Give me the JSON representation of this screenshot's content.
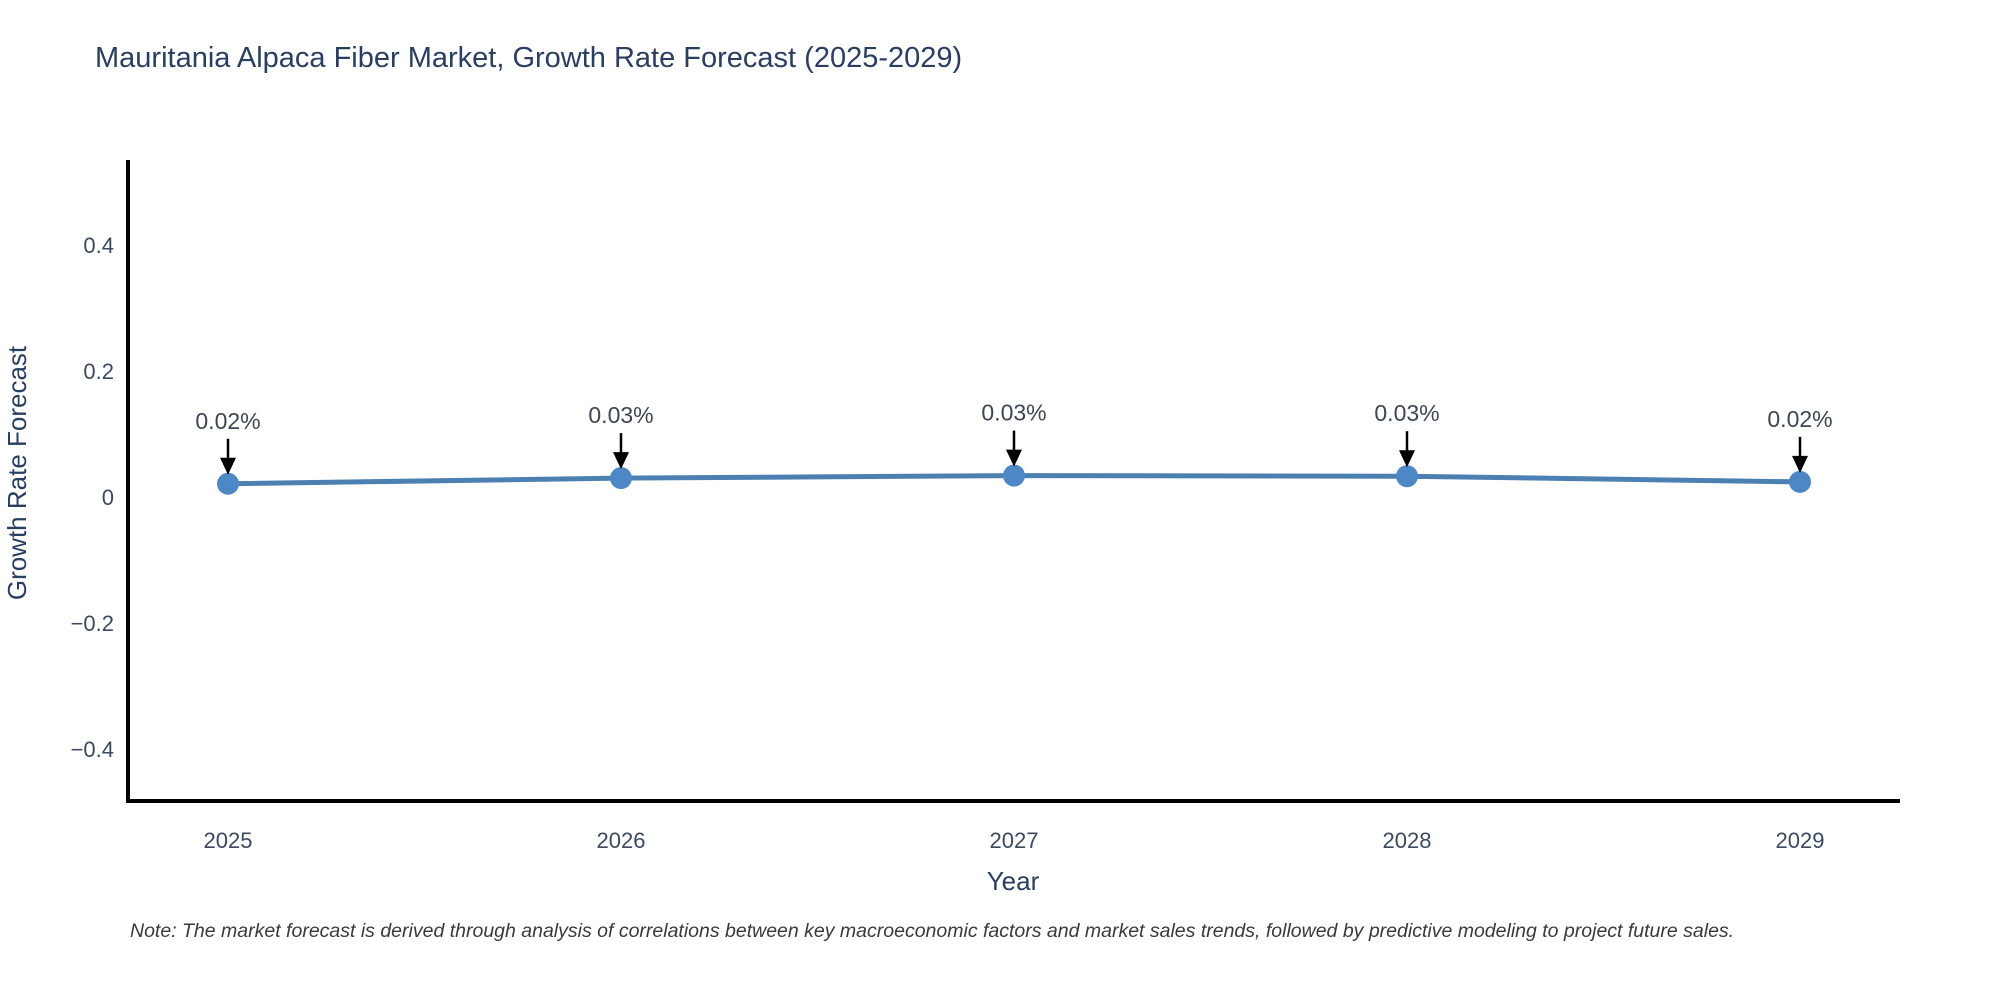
{
  "page": {
    "background_color": "#ffffff"
  },
  "chart_data": {
    "type": "line",
    "title": "Mauritania Alpaca Fiber Market, Growth Rate Forecast (2025-2029)",
    "xlabel": "Year",
    "ylabel": "Growth Rate Forecast",
    "note": "Note: The market forecast is derived through analysis of correlations between key macroeconomic factors and market sales trends, followed by predictive modeling to project future sales.",
    "x": [
      2025,
      2026,
      2027,
      2028,
      2029
    ],
    "values": [
      0.021,
      0.03,
      0.034,
      0.033,
      0.024
    ],
    "point_labels": [
      "0.02%",
      "0.03%",
      "0.03%",
      "0.03%",
      "0.02%"
    ],
    "yticks": [
      {
        "v": -0.4,
        "label": "−0.4"
      },
      {
        "v": -0.2,
        "label": "−0.2"
      },
      {
        "v": 0,
        "label": "0"
      },
      {
        "v": 0.2,
        "label": "0.2"
      },
      {
        "v": 0.4,
        "label": "0.4"
      }
    ],
    "ylim": [
      -0.48,
      0.54
    ],
    "grid": false,
    "legend": "none",
    "colors": {
      "line": "#4c80b2",
      "marker": "#4d87c6",
      "axis": "#000000",
      "arrow": "#000000",
      "title_text": "#2a3f5f",
      "tick_text": "#3b4a5f",
      "annotation_text": "#3d4653",
      "note_text": "#3a3a3a"
    }
  }
}
